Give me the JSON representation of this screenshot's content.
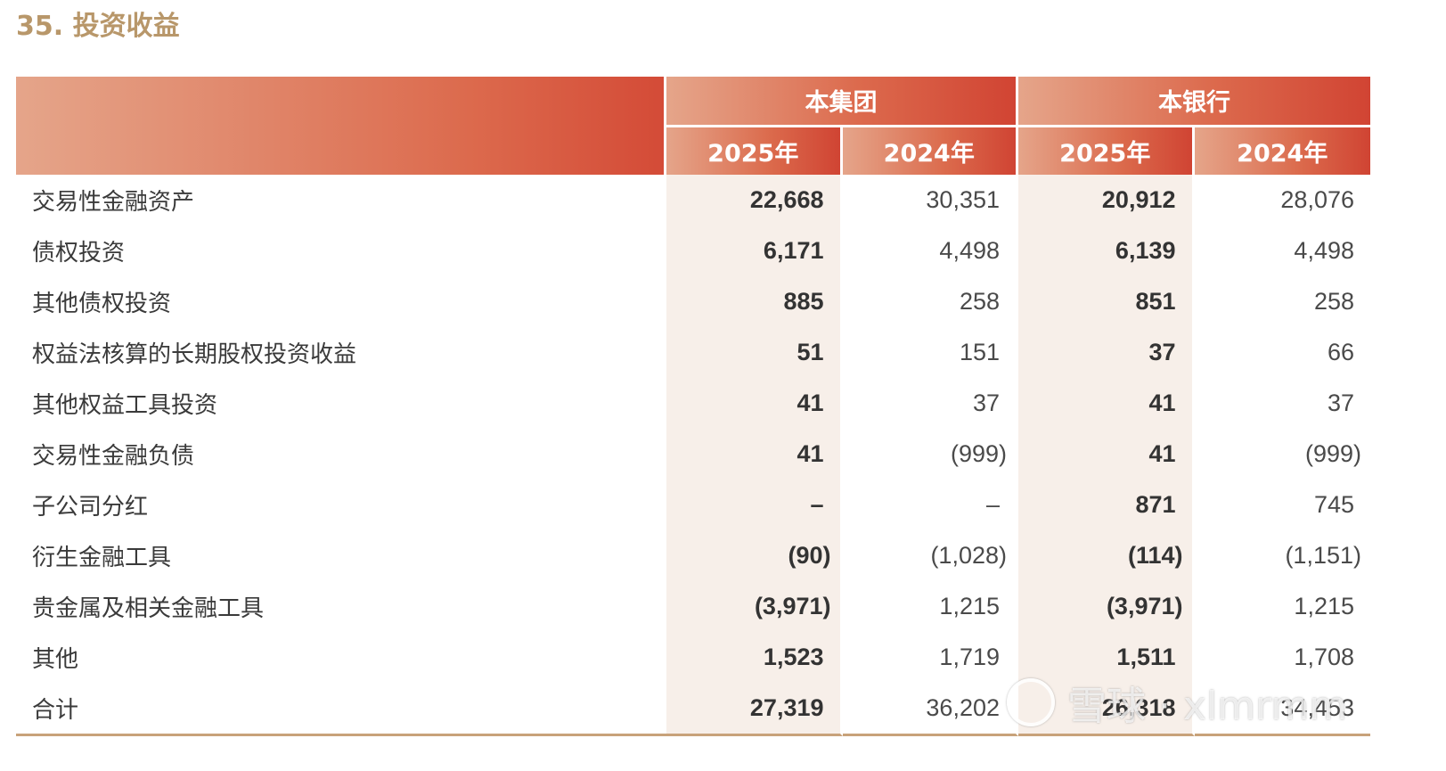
{
  "title": "35. 投资收益",
  "header": {
    "groups": [
      "本集团",
      "本银行"
    ],
    "years": [
      "2025年",
      "2024年",
      "2025年",
      "2024年"
    ]
  },
  "rows": [
    {
      "label": "交易性金融资产",
      "values": [
        "22,668",
        "30,351",
        "20,912",
        "28,076"
      ]
    },
    {
      "label": "债权投资",
      "values": [
        "6,171",
        "4,498",
        "6,139",
        "4,498"
      ]
    },
    {
      "label": "其他债权投资",
      "values": [
        "885",
        "258",
        "851",
        "258"
      ]
    },
    {
      "label": "权益法核算的长期股权投资收益",
      "values": [
        "51",
        "151",
        "37",
        "66"
      ]
    },
    {
      "label": "其他权益工具投资",
      "values": [
        "41",
        "37",
        "41",
        "37"
      ]
    },
    {
      "label": "交易性金融负债",
      "values": [
        "41",
        "(999)",
        "41",
        "(999)"
      ]
    },
    {
      "label": "子公司分红",
      "values": [
        "–",
        "–",
        "871",
        "745"
      ]
    },
    {
      "label": "衍生金融工具",
      "values": [
        "(90)",
        "(1,028)",
        "(114)",
        "(1,151)"
      ]
    },
    {
      "label": "贵金属及相关金融工具",
      "values": [
        "(3,971)",
        "1,215",
        "(3,971)",
        "1,215"
      ]
    },
    {
      "label": "其他",
      "values": [
        "1,523",
        "1,719",
        "1,511",
        "1,708"
      ]
    },
    {
      "label": "合计",
      "values": [
        "27,319",
        "36,202",
        "26,318",
        "34,453"
      ]
    }
  ],
  "watermark": "雪球 · xlmrmm"
}
